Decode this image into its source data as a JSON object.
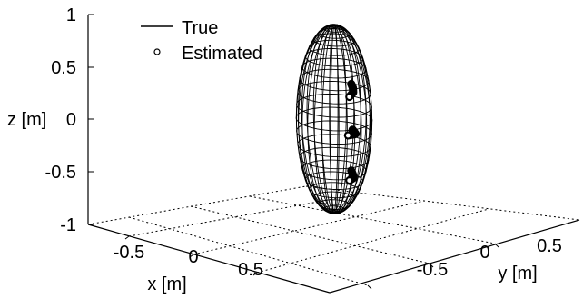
{
  "chart_data": {
    "type": "3d-surface-with-trajectory",
    "title": "",
    "legend": {
      "placement": "top-left",
      "entries": [
        {
          "label": "True",
          "marker": "solid-line"
        },
        {
          "label": "Estimated",
          "marker": "open-circle"
        }
      ]
    },
    "axes": {
      "x": {
        "label": "x [m]",
        "ticks": [
          "-0.5",
          "0",
          "0.5"
        ],
        "tick_values": [
          -0.5,
          0,
          0.5
        ],
        "range": [
          -0.9,
          0.9
        ]
      },
      "y": {
        "label": "y [m]",
        "ticks": [
          "-0.5",
          "0",
          "0.5"
        ],
        "tick_values": [
          -0.5,
          0,
          0.5
        ],
        "range": [
          -0.9,
          0.9
        ]
      },
      "z": {
        "label": "z [m]",
        "ticks": [
          "1",
          "0.5",
          "0",
          "-0.5",
          "-1"
        ],
        "tick_values": [
          1,
          0.5,
          0,
          -0.5,
          -1
        ],
        "range": [
          -1,
          1
        ]
      }
    },
    "grid": "floor-dotted",
    "surface": {
      "shape": "ellipsoid",
      "center": [
        0,
        0,
        0
      ],
      "semi_axes": [
        0.2,
        0.2,
        0.9
      ],
      "style": "wireframe",
      "color": "#000000"
    },
    "trajectories": [
      {
        "name": "True",
        "style": "line",
        "points": [
          [
            -0.18,
            -0.05,
            0.25
          ],
          [
            -0.1,
            0.04,
            0.28
          ],
          [
            -0.02,
            0.12,
            0.3
          ],
          [
            0.05,
            0.16,
            0.3
          ]
        ]
      },
      {
        "name": "True",
        "style": "line",
        "points": [
          [
            -0.2,
            -0.06,
            -0.2
          ],
          [
            -0.1,
            0.06,
            -0.15
          ],
          [
            0.0,
            0.15,
            -0.08
          ],
          [
            0.08,
            0.18,
            -0.05
          ]
        ]
      },
      {
        "name": "True",
        "style": "line",
        "points": [
          [
            -0.18,
            -0.05,
            -0.58
          ],
          [
            -0.1,
            0.04,
            -0.55
          ],
          [
            -0.02,
            0.12,
            -0.52
          ],
          [
            0.05,
            0.16,
            -0.5
          ]
        ]
      }
    ],
    "estimated_points": [
      [
        0.05,
        0.16,
        0.3
      ],
      [
        0.08,
        0.18,
        -0.05
      ],
      [
        0.05,
        0.16,
        -0.5
      ]
    ]
  }
}
